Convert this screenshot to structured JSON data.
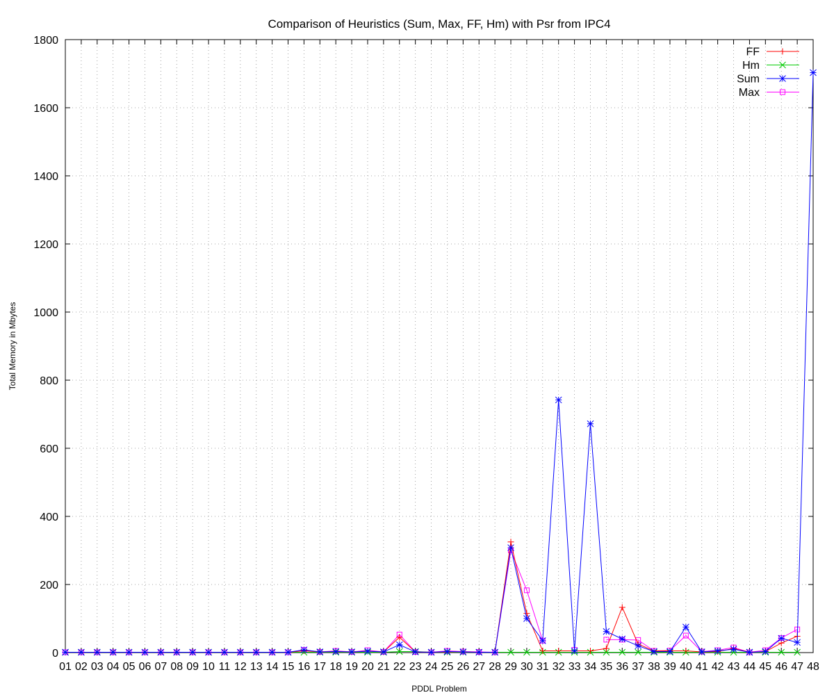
{
  "chart_data": {
    "type": "line",
    "title": "Comparison of Heuristics (Sum, Max, FF, Hm) with Psr from IPC4",
    "xlabel": "PDDL Problem",
    "ylabel": "Total Memory in Mbytes",
    "ylim": [
      0,
      1800
    ],
    "yticks": [
      0,
      200,
      400,
      600,
      800,
      1000,
      1200,
      1400,
      1600,
      1800
    ],
    "grid": true,
    "legend_position": "top-right",
    "categories": [
      "01",
      "02",
      "03",
      "04",
      "05",
      "06",
      "07",
      "08",
      "09",
      "10",
      "11",
      "12",
      "13",
      "14",
      "15",
      "16",
      "17",
      "18",
      "19",
      "20",
      "21",
      "22",
      "23",
      "24",
      "25",
      "26",
      "27",
      "28",
      "29",
      "30",
      "31",
      "32",
      "33",
      "34",
      "35",
      "36",
      "37",
      "38",
      "39",
      "40",
      "41",
      "42",
      "43",
      "44",
      "45",
      "46",
      "47",
      "48"
    ],
    "series": [
      {
        "name": "FF",
        "color": "#ff0000",
        "marker": "plus",
        "values": [
          1,
          1,
          1,
          1,
          1,
          1,
          1,
          1,
          1,
          1,
          1,
          1,
          1,
          1,
          1,
          5,
          2,
          3,
          2,
          4,
          2,
          45,
          2,
          1,
          2,
          2,
          1,
          1,
          325,
          115,
          5,
          5,
          5,
          5,
          12,
          133,
          25,
          5,
          5,
          5,
          2,
          3,
          12,
          1,
          3,
          28,
          48,
          null
        ]
      },
      {
        "name": "Hm",
        "color": "#00cc00",
        "marker": "cross",
        "values": [
          1,
          1,
          1,
          1,
          1,
          1,
          1,
          1,
          1,
          1,
          1,
          1,
          1,
          1,
          1,
          1,
          1,
          1,
          1,
          1,
          1,
          3,
          3,
          1,
          1,
          1,
          1,
          1,
          1,
          1,
          1,
          1,
          1,
          1,
          1,
          1,
          1,
          1,
          1,
          1,
          1,
          1,
          1,
          1,
          1,
          1,
          1,
          null
        ]
      },
      {
        "name": "Sum",
        "color": "#0000ff",
        "marker": "star",
        "values": [
          1,
          1,
          1,
          1,
          1,
          1,
          1,
          1,
          1,
          1,
          1,
          1,
          1,
          1,
          1,
          8,
          2,
          3,
          2,
          4,
          2,
          23,
          2,
          1,
          3,
          2,
          1,
          1,
          308,
          100,
          35,
          742,
          5,
          672,
          62,
          40,
          20,
          3,
          3,
          75,
          2,
          5,
          10,
          1,
          3,
          42,
          30,
          1703
        ]
      },
      {
        "name": "Max",
        "color": "#ff00ff",
        "marker": "square",
        "values": [
          1,
          1,
          1,
          1,
          1,
          1,
          1,
          1,
          1,
          1,
          1,
          1,
          1,
          1,
          1,
          8,
          2,
          5,
          2,
          7,
          2,
          53,
          2,
          1,
          5,
          3,
          2,
          1,
          300,
          183,
          35,
          null,
          8,
          null,
          38,
          38,
          37,
          5,
          6,
          50,
          3,
          7,
          15,
          1,
          7,
          43,
          68,
          null
        ]
      }
    ]
  }
}
